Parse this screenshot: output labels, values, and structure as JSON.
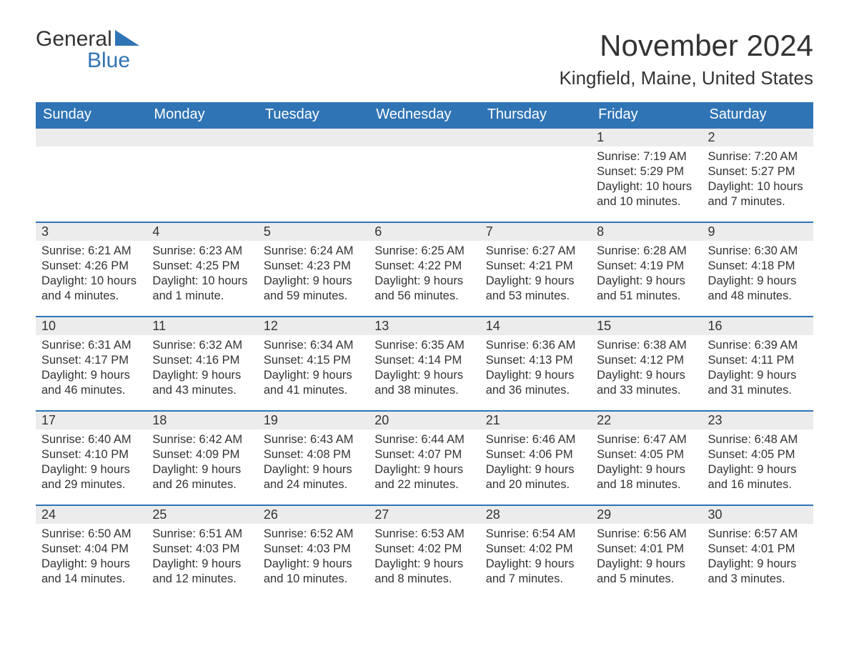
{
  "brand": {
    "word1": "General",
    "word2": "Blue",
    "accent_color": "#2f74b5",
    "text_color": "#333333"
  },
  "title": "November 2024",
  "location": "Kingfield, Maine, United States",
  "styling": {
    "header_bg": "#2f74b5",
    "header_text": "#ffffff",
    "daynum_bg": "#ececec",
    "daynum_border_top": "#2f74b5",
    "body_text": "#333333",
    "page_bg": "#ffffff",
    "title_fontsize": 42,
    "location_fontsize": 26,
    "header_fontsize": 20,
    "daynum_fontsize": 18,
    "cell_fontsize": 16.5
  },
  "weekdays": [
    "Sunday",
    "Monday",
    "Tuesday",
    "Wednesday",
    "Thursday",
    "Friday",
    "Saturday"
  ],
  "weeks": [
    [
      null,
      null,
      null,
      null,
      null,
      {
        "n": "1",
        "sunrise": "Sunrise: 7:19 AM",
        "sunset": "Sunset: 5:29 PM",
        "daylight": "Daylight: 10 hours and 10 minutes."
      },
      {
        "n": "2",
        "sunrise": "Sunrise: 7:20 AM",
        "sunset": "Sunset: 5:27 PM",
        "daylight": "Daylight: 10 hours and 7 minutes."
      }
    ],
    [
      {
        "n": "3",
        "sunrise": "Sunrise: 6:21 AM",
        "sunset": "Sunset: 4:26 PM",
        "daylight": "Daylight: 10 hours and 4 minutes."
      },
      {
        "n": "4",
        "sunrise": "Sunrise: 6:23 AM",
        "sunset": "Sunset: 4:25 PM",
        "daylight": "Daylight: 10 hours and 1 minute."
      },
      {
        "n": "5",
        "sunrise": "Sunrise: 6:24 AM",
        "sunset": "Sunset: 4:23 PM",
        "daylight": "Daylight: 9 hours and 59 minutes."
      },
      {
        "n": "6",
        "sunrise": "Sunrise: 6:25 AM",
        "sunset": "Sunset: 4:22 PM",
        "daylight": "Daylight: 9 hours and 56 minutes."
      },
      {
        "n": "7",
        "sunrise": "Sunrise: 6:27 AM",
        "sunset": "Sunset: 4:21 PM",
        "daylight": "Daylight: 9 hours and 53 minutes."
      },
      {
        "n": "8",
        "sunrise": "Sunrise: 6:28 AM",
        "sunset": "Sunset: 4:19 PM",
        "daylight": "Daylight: 9 hours and 51 minutes."
      },
      {
        "n": "9",
        "sunrise": "Sunrise: 6:30 AM",
        "sunset": "Sunset: 4:18 PM",
        "daylight": "Daylight: 9 hours and 48 minutes."
      }
    ],
    [
      {
        "n": "10",
        "sunrise": "Sunrise: 6:31 AM",
        "sunset": "Sunset: 4:17 PM",
        "daylight": "Daylight: 9 hours and 46 minutes."
      },
      {
        "n": "11",
        "sunrise": "Sunrise: 6:32 AM",
        "sunset": "Sunset: 4:16 PM",
        "daylight": "Daylight: 9 hours and 43 minutes."
      },
      {
        "n": "12",
        "sunrise": "Sunrise: 6:34 AM",
        "sunset": "Sunset: 4:15 PM",
        "daylight": "Daylight: 9 hours and 41 minutes."
      },
      {
        "n": "13",
        "sunrise": "Sunrise: 6:35 AM",
        "sunset": "Sunset: 4:14 PM",
        "daylight": "Daylight: 9 hours and 38 minutes."
      },
      {
        "n": "14",
        "sunrise": "Sunrise: 6:36 AM",
        "sunset": "Sunset: 4:13 PM",
        "daylight": "Daylight: 9 hours and 36 minutes."
      },
      {
        "n": "15",
        "sunrise": "Sunrise: 6:38 AM",
        "sunset": "Sunset: 4:12 PM",
        "daylight": "Daylight: 9 hours and 33 minutes."
      },
      {
        "n": "16",
        "sunrise": "Sunrise: 6:39 AM",
        "sunset": "Sunset: 4:11 PM",
        "daylight": "Daylight: 9 hours and 31 minutes."
      }
    ],
    [
      {
        "n": "17",
        "sunrise": "Sunrise: 6:40 AM",
        "sunset": "Sunset: 4:10 PM",
        "daylight": "Daylight: 9 hours and 29 minutes."
      },
      {
        "n": "18",
        "sunrise": "Sunrise: 6:42 AM",
        "sunset": "Sunset: 4:09 PM",
        "daylight": "Daylight: 9 hours and 26 minutes."
      },
      {
        "n": "19",
        "sunrise": "Sunrise: 6:43 AM",
        "sunset": "Sunset: 4:08 PM",
        "daylight": "Daylight: 9 hours and 24 minutes."
      },
      {
        "n": "20",
        "sunrise": "Sunrise: 6:44 AM",
        "sunset": "Sunset: 4:07 PM",
        "daylight": "Daylight: 9 hours and 22 minutes."
      },
      {
        "n": "21",
        "sunrise": "Sunrise: 6:46 AM",
        "sunset": "Sunset: 4:06 PM",
        "daylight": "Daylight: 9 hours and 20 minutes."
      },
      {
        "n": "22",
        "sunrise": "Sunrise: 6:47 AM",
        "sunset": "Sunset: 4:05 PM",
        "daylight": "Daylight: 9 hours and 18 minutes."
      },
      {
        "n": "23",
        "sunrise": "Sunrise: 6:48 AM",
        "sunset": "Sunset: 4:05 PM",
        "daylight": "Daylight: 9 hours and 16 minutes."
      }
    ],
    [
      {
        "n": "24",
        "sunrise": "Sunrise: 6:50 AM",
        "sunset": "Sunset: 4:04 PM",
        "daylight": "Daylight: 9 hours and 14 minutes."
      },
      {
        "n": "25",
        "sunrise": "Sunrise: 6:51 AM",
        "sunset": "Sunset: 4:03 PM",
        "daylight": "Daylight: 9 hours and 12 minutes."
      },
      {
        "n": "26",
        "sunrise": "Sunrise: 6:52 AM",
        "sunset": "Sunset: 4:03 PM",
        "daylight": "Daylight: 9 hours and 10 minutes."
      },
      {
        "n": "27",
        "sunrise": "Sunrise: 6:53 AM",
        "sunset": "Sunset: 4:02 PM",
        "daylight": "Daylight: 9 hours and 8 minutes."
      },
      {
        "n": "28",
        "sunrise": "Sunrise: 6:54 AM",
        "sunset": "Sunset: 4:02 PM",
        "daylight": "Daylight: 9 hours and 7 minutes."
      },
      {
        "n": "29",
        "sunrise": "Sunrise: 6:56 AM",
        "sunset": "Sunset: 4:01 PM",
        "daylight": "Daylight: 9 hours and 5 minutes."
      },
      {
        "n": "30",
        "sunrise": "Sunrise: 6:57 AM",
        "sunset": "Sunset: 4:01 PM",
        "daylight": "Daylight: 9 hours and 3 minutes."
      }
    ]
  ]
}
